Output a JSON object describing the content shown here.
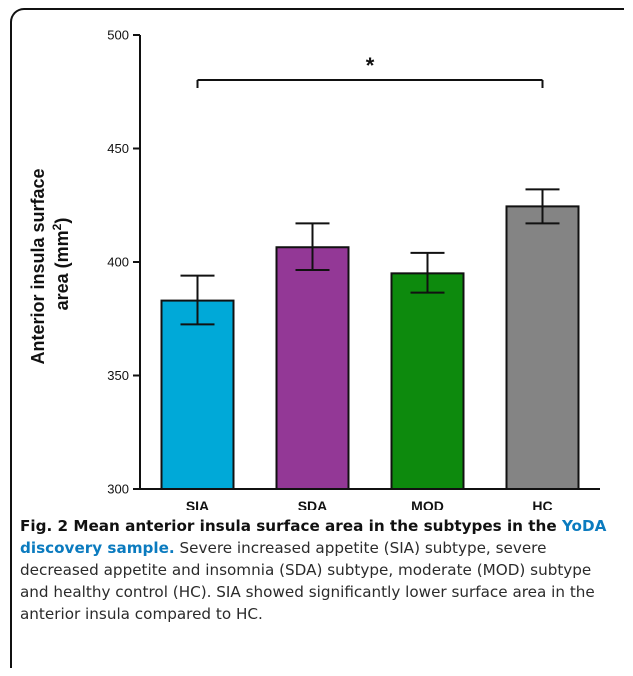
{
  "chart_data": {
    "type": "bar",
    "categories": [
      "SIA",
      "SDA",
      "MOD",
      "HC"
    ],
    "values": [
      383,
      406.5,
      395,
      424.5
    ],
    "error_low": [
      372.5,
      396.5,
      386.5,
      417
    ],
    "error_high": [
      394,
      417,
      404,
      432
    ],
    "colors": [
      "#00a9d8",
      "#933896",
      "#0d8a0d",
      "#848484"
    ],
    "ylim": [
      300,
      500
    ],
    "yticks": [
      300,
      350,
      400,
      450,
      500
    ],
    "ylabel_line1": "Anterior insula surface",
    "ylabel_line2": "area (mm",
    "ylabel_sup": "2",
    "ylabel_close": ")",
    "significance": {
      "from": "SIA",
      "to": "HC",
      "marker": "*"
    }
  },
  "caption": {
    "lead_a": "Fig. 2 Mean anterior insula surface area in the subtypes in the ",
    "lead_b": "YoDA discovery sample.",
    "body": " Severe increased appetite (SIA) subtype, severe decreased appetite and insomnia (SDA) subtype, moderate (MOD) subtype and healthy control (HC). SIA showed significantly lower surface area in the anterior insula compared to HC."
  }
}
